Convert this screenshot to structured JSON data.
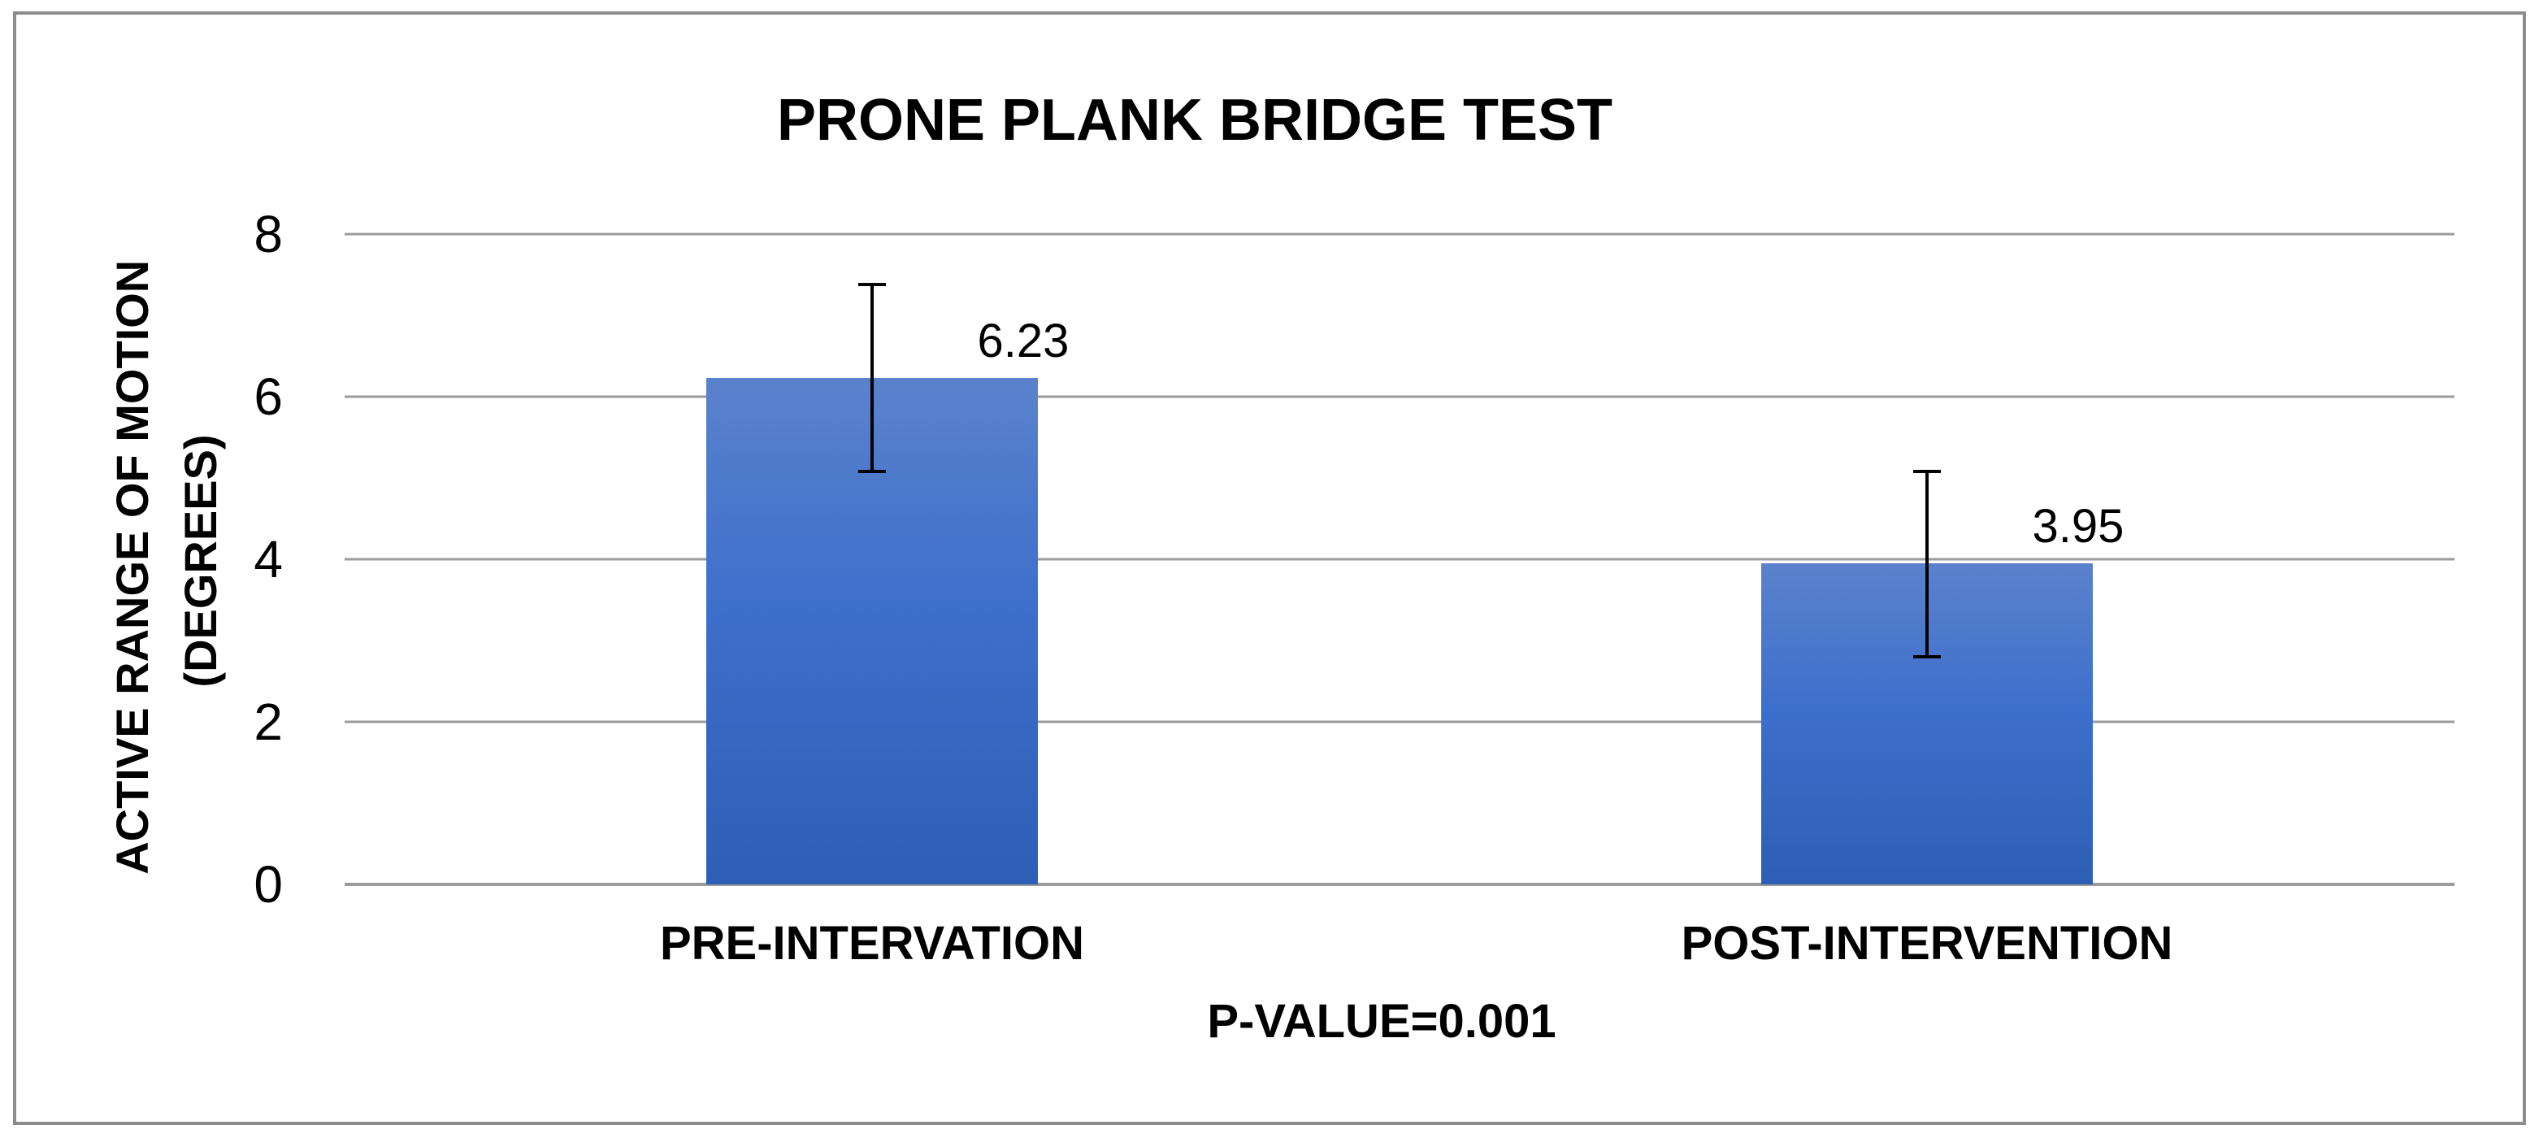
{
  "chart_data": {
    "type": "bar",
    "title": "PRONE PLANK BRIDGE TEST",
    "ylabel_lines": [
      "ACTIVE RANGE OF MOTION",
      "(DEGREES)"
    ],
    "xlabel": "P-VALUE=0.001",
    "categories": [
      "PRE-INTERVATION",
      "POST-INTERVENTION"
    ],
    "values": [
      6.23,
      3.95
    ],
    "data_labels": [
      "6.23",
      "3.95"
    ],
    "error_bars": [
      {
        "low": 5.08,
        "high": 7.38
      },
      {
        "low": 2.8,
        "high": 5.08
      }
    ],
    "ylim": [
      0,
      8
    ],
    "yticks": [
      0,
      2,
      4,
      6,
      8
    ],
    "grid": true,
    "legend": "none",
    "colors": {
      "bar_top": "#5b82cc",
      "bar_mid": "#3d6fcc",
      "bar_bottom": "#2e5fb6",
      "frame": "#8c8c8c",
      "grid": "#9b9b9b"
    }
  }
}
